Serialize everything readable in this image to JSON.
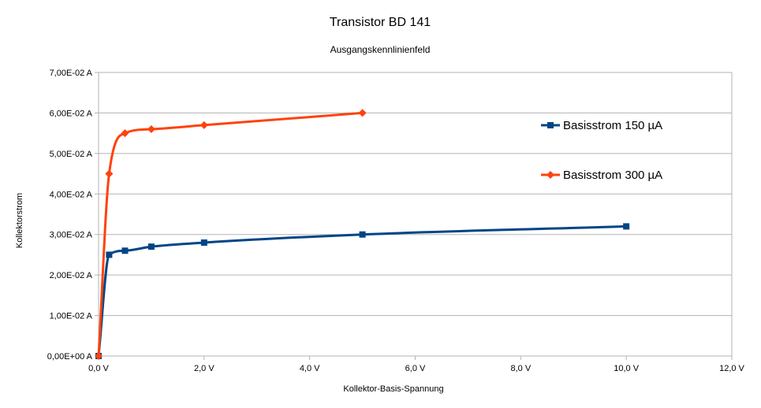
{
  "chart_data": {
    "type": "line",
    "title": "Transistor BD 141",
    "subtitle": "Ausgangskennlinienfeld",
    "xlabel": "Kollektor-Basis-Spannung",
    "ylabel": "Kollektorstrom",
    "xlim": [
      0,
      12
    ],
    "ylim": [
      0,
      0.07
    ],
    "x_ticks": [
      0,
      2,
      4,
      6,
      8,
      10,
      12
    ],
    "x_tick_labels": [
      "0,0 V",
      "2,0 V",
      "4,0 V",
      "6,0 V",
      "8,0 V",
      "10,0 V",
      "12,0 V"
    ],
    "y_ticks": [
      0,
      0.01,
      0.02,
      0.03,
      0.04,
      0.05,
      0.06,
      0.07
    ],
    "y_tick_labels": [
      "0,00E+00 A",
      "1,00E-02 A",
      "2,00E-02 A",
      "3,00E-02 A",
      "4,00E-02 A",
      "5,00E-02 A",
      "6,00E-02 A",
      "7,00E-02 A"
    ],
    "grid": "horizontal",
    "legend_position": "right",
    "series": [
      {
        "name": "Basisstrom 150 µA",
        "color": "#004586",
        "marker": "square",
        "x": [
          0,
          0.2,
          0.5,
          1,
          2,
          5,
          10
        ],
        "y": [
          0,
          0.025,
          0.026,
          0.027,
          0.028,
          0.03,
          0.032
        ]
      },
      {
        "name": "Basisstrom 300 µA",
        "color": "#ff420e",
        "marker": "diamond",
        "x": [
          0,
          0.2,
          0.5,
          1,
          2,
          5
        ],
        "y": [
          0,
          0.045,
          0.055,
          0.056,
          0.057,
          0.06
        ]
      }
    ]
  }
}
